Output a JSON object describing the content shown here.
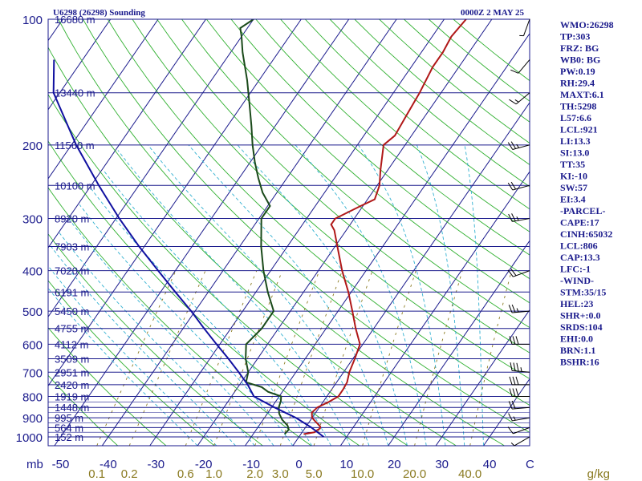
{
  "chart_data": {
    "type": "line",
    "title_left": "U6298 (26298) Sounding",
    "title_right": "0000Z  2 MAY 25",
    "y_axis_unit": "mb",
    "x_axis_unit": "g/kg",
    "pressure_ticks": [
      "100",
      "200",
      "300",
      "400",
      "500",
      "600",
      "700",
      "800",
      "900",
      "1000"
    ],
    "temperature_ticks": [
      "-50",
      "-40",
      "-30",
      "-20",
      "-10",
      "0",
      "10",
      "20",
      "30",
      "40"
    ],
    "temperature_tick_values": [
      -50,
      -40,
      -30,
      -20,
      -10,
      0,
      10,
      20,
      30,
      40
    ],
    "temp_axis_end_label": "C",
    "mixing_ratio_labels": [
      "0.1",
      "0.2",
      "0.6",
      "1.0",
      "2.0",
      "3.0",
      "5.0",
      "10.0",
      "20.0",
      "40.0"
    ],
    "mixing_ratio_values": [
      0.1,
      0.2,
      0.6,
      1.0,
      2.0,
      3.0,
      5.0,
      10.0,
      20.0,
      40.0
    ],
    "height_labels": [
      {
        "p": 100,
        "text": "16680 m"
      },
      {
        "p": 150,
        "text": "13440 m"
      },
      {
        "p": 200,
        "text": "11560 m"
      },
      {
        "p": 250,
        "text": "10100 m"
      },
      {
        "p": 300,
        "text": "8920 m"
      },
      {
        "p": 350,
        "text": "7903 m"
      },
      {
        "p": 400,
        "text": "7020 m"
      },
      {
        "p": 450,
        "text": "6191 m"
      },
      {
        "p": 500,
        "text": "5450 m"
      },
      {
        "p": 550,
        "text": "4755 m"
      },
      {
        "p": 600,
        "text": "4112 m"
      },
      {
        "p": 650,
        "text": "3509 m"
      },
      {
        "p": 700,
        "text": "2951 m"
      },
      {
        "p": 750,
        "text": "2420 m"
      },
      {
        "p": 800,
        "text": "1919 m"
      },
      {
        "p": 850,
        "text": "1448 m"
      },
      {
        "p": 900,
        "text": "995 m"
      },
      {
        "p": 950,
        "text": "564 m"
      },
      {
        "p": 1000,
        "text": "152 m"
      }
    ],
    "series": [
      {
        "name": "Temperature",
        "color": "#b01818",
        "p": [
          985,
          975,
          965,
          955,
          945,
          930,
          915,
          900,
          875,
          850,
          825,
          800,
          770,
          740,
          700,
          650,
          600,
          550,
          500,
          450,
          400,
          350,
          320,
          310,
          300,
          280,
          270,
          250,
          230,
          200,
          190,
          170,
          150,
          130,
          120,
          110,
          100
        ],
        "t": [
          0.6,
          2.6,
          2.8,
          3.2,
          3.0,
          2.0,
          1.0,
          0.0,
          -0.8,
          -0.4,
          1.2,
          2.4,
          2.4,
          2.2,
          1.2,
          0.4,
          -0.6,
          -3.8,
          -7.0,
          -10.6,
          -15.0,
          -19.5,
          -22.5,
          -24.0,
          -24.0,
          -20.5,
          -18.5,
          -19.5,
          -21.5,
          -24.5,
          -23.5,
          -24.0,
          -24.5,
          -25.5,
          -25.5,
          -26.0,
          -25.4
        ]
      },
      {
        "name": "Dewpoint",
        "color": "#1a4a1a",
        "p": [
          985,
          960,
          940,
          910,
          880,
          850,
          820,
          800,
          780,
          760,
          740,
          700,
          650,
          600,
          550,
          500,
          450,
          400,
          350,
          300,
          280,
          260,
          240,
          220,
          200,
          180,
          160,
          140,
          120,
          110,
          105,
          100
        ],
        "t": [
          -3.4,
          -3.2,
          -4.0,
          -6.0,
          -7.5,
          -8.5,
          -9.0,
          -9.6,
          -13.0,
          -15.0,
          -19.0,
          -20.0,
          -22.5,
          -24.5,
          -23.5,
          -23.5,
          -27.5,
          -31.5,
          -35.5,
          -39.5,
          -39.5,
          -43.0,
          -46.0,
          -49.0,
          -52.0,
          -55.0,
          -58.5,
          -62.5,
          -67.5,
          -70.0,
          -71.5,
          -70.0
        ]
      },
      {
        "name": "Parcel",
        "color": "#1010a0",
        "p": [
          1000,
          950,
          900,
          850,
          800,
          750,
          700,
          650,
          600,
          550,
          500,
          450,
          400,
          350,
          300,
          250,
          200,
          150,
          125
        ],
        "t": [
          5.2,
          1.3,
          -3.4,
          -9.4,
          -15.3,
          -18.3,
          -22.0,
          -26.1,
          -30.7,
          -35.6,
          -40.8,
          -46.9,
          -53.6,
          -61.1,
          -69.3,
          -78.4,
          -89.0,
          -101.3,
          -106.0
        ]
      }
    ],
    "wind_barbs": [
      {
        "p": 1000,
        "spd": 5,
        "dir": 240
      },
      {
        "p": 950,
        "spd": 10,
        "dir": 250
      },
      {
        "p": 900,
        "spd": 15,
        "dir": 260
      },
      {
        "p": 850,
        "spd": 20,
        "dir": 265
      },
      {
        "p": 800,
        "spd": 30,
        "dir": 270
      },
      {
        "p": 750,
        "spd": 30,
        "dir": 270
      },
      {
        "p": 700,
        "spd": 35,
        "dir": 275
      },
      {
        "p": 600,
        "spd": 30,
        "dir": 270
      },
      {
        "p": 500,
        "spd": 25,
        "dir": 265
      },
      {
        "p": 400,
        "spd": 20,
        "dir": 250
      },
      {
        "p": 300,
        "spd": 25,
        "dir": 260
      },
      {
        "p": 250,
        "spd": 20,
        "dir": 255
      },
      {
        "p": 200,
        "spd": 25,
        "dir": 255
      },
      {
        "p": 150,
        "spd": 15,
        "dir": 230
      },
      {
        "p": 125,
        "spd": 10,
        "dir": 220
      },
      {
        "p": 100,
        "spd": 5,
        "dir": 200
      }
    ]
  },
  "indices": [
    "WMO:26298",
    "TP:303",
    "FRZ: BG",
    "WB0: BG",
    "PW:0.19",
    "RH:29.4",
    "MAXT:6.1",
    "TH:5298",
    "L57:6.6",
    "LCL:921",
    "LI:13.3",
    "SI:13.0",
    "TT:35",
    "KI:-10",
    "SW:57",
    "EI:3.4",
    "-PARCEL-",
    "CAPE:17",
    "CINH:65032",
    "LCL:806",
    "CAP:13.3",
    "LFC:-1",
    "-WIND-",
    "STM:35/15",
    "HEL:23",
    "SHR+:0.0",
    "SRDS:104",
    "EHI:0.0",
    "BRN:1.1",
    "BSHR:16"
  ],
  "colors": {
    "isobar": "#1a1a8c",
    "isotherm": "#1a1a8c",
    "dry_adiabat": "#30b030",
    "moist_adiabat": "#30b0d0",
    "mixing_ratio": "#8a7a20"
  }
}
